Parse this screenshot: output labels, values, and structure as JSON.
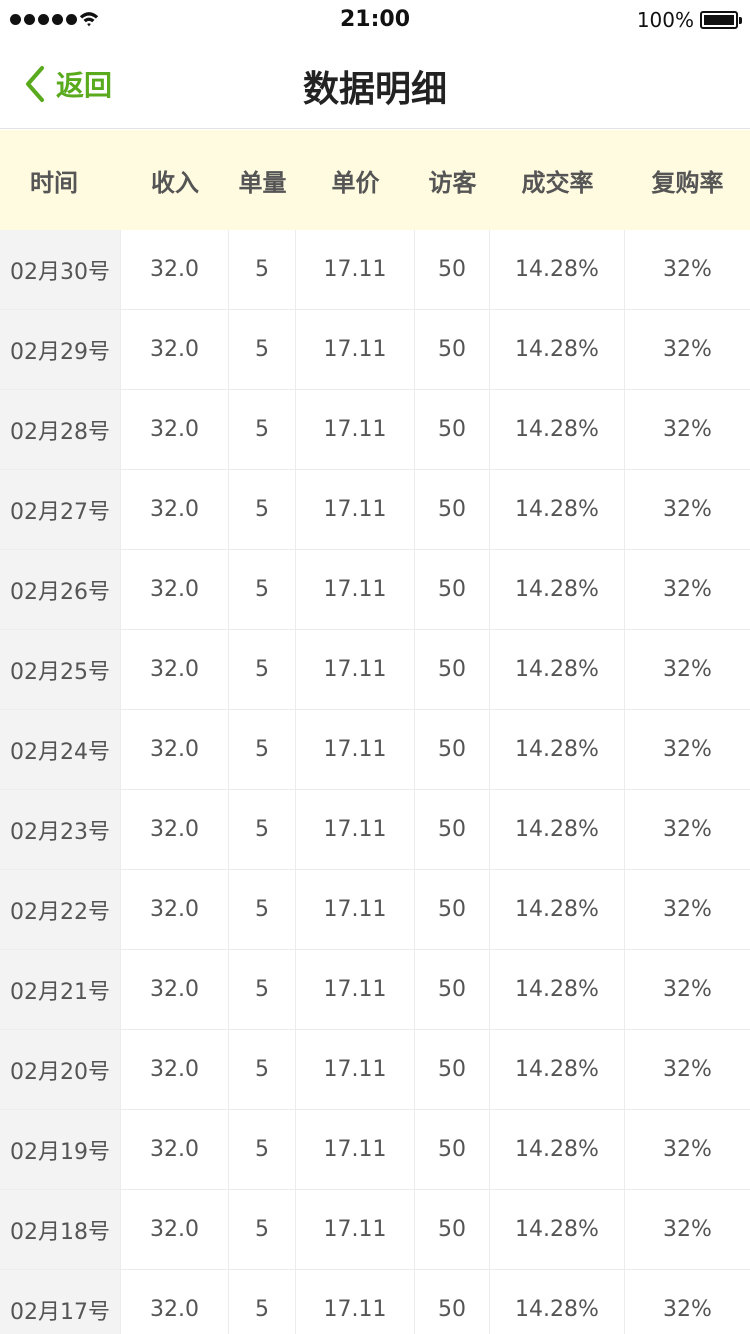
{
  "status_bar": {
    "time": "21:00",
    "battery": "100%",
    "signal_icon": "signal-dots-icon",
    "wifi_icon": "wifi-icon",
    "battery_icon": "battery-icon"
  },
  "nav": {
    "back_label": "返回",
    "back_icon": "chevron-left-icon",
    "title": "数据明细",
    "accent_color": "#5aaa1e"
  },
  "table": {
    "columns": [
      "时间",
      "收入",
      "单量",
      "单价",
      "访客",
      "成交率",
      "复购率"
    ],
    "rows": [
      [
        "02月30号",
        "32.0",
        "5",
        "17.11",
        "50",
        "14.28%",
        "32%"
      ],
      [
        "02月29号",
        "32.0",
        "5",
        "17.11",
        "50",
        "14.28%",
        "32%"
      ],
      [
        "02月28号",
        "32.0",
        "5",
        "17.11",
        "50",
        "14.28%",
        "32%"
      ],
      [
        "02月27号",
        "32.0",
        "5",
        "17.11",
        "50",
        "14.28%",
        "32%"
      ],
      [
        "02月26号",
        "32.0",
        "5",
        "17.11",
        "50",
        "14.28%",
        "32%"
      ],
      [
        "02月25号",
        "32.0",
        "5",
        "17.11",
        "50",
        "14.28%",
        "32%"
      ],
      [
        "02月24号",
        "32.0",
        "5",
        "17.11",
        "50",
        "14.28%",
        "32%"
      ],
      [
        "02月23号",
        "32.0",
        "5",
        "17.11",
        "50",
        "14.28%",
        "32%"
      ],
      [
        "02月22号",
        "32.0",
        "5",
        "17.11",
        "50",
        "14.28%",
        "32%"
      ],
      [
        "02月21号",
        "32.0",
        "5",
        "17.11",
        "50",
        "14.28%",
        "32%"
      ],
      [
        "02月20号",
        "32.0",
        "5",
        "17.11",
        "50",
        "14.28%",
        "32%"
      ],
      [
        "02月19号",
        "32.0",
        "5",
        "17.11",
        "50",
        "14.28%",
        "32%"
      ],
      [
        "02月18号",
        "32.0",
        "5",
        "17.11",
        "50",
        "14.28%",
        "32%"
      ],
      [
        "02月17号",
        "32.0",
        "5",
        "17.11",
        "50",
        "14.28%",
        "32%"
      ]
    ],
    "header_bg": "#fffbe0",
    "date_col_bg": "#f3f3f3"
  }
}
